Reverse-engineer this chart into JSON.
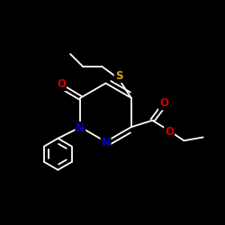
{
  "bg_color": "#000000",
  "atom_colors": {
    "S": "#DAA520",
    "O": "#CC0000",
    "N": "#0000CC",
    "C": "#FFFFFF"
  },
  "bond_color": "#FFFFFF",
  "lw": 1.3,
  "fs": 8.5
}
